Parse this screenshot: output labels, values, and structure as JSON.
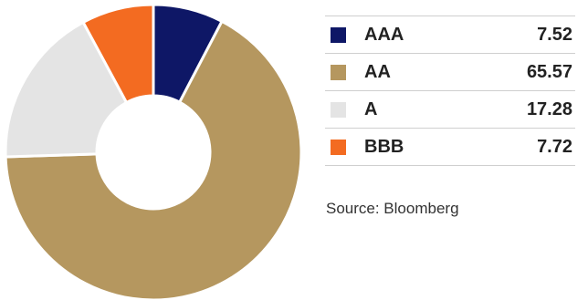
{
  "chart_data": {
    "type": "pie",
    "style": "donut",
    "categories": [
      "AAA",
      "AA",
      "A",
      "BBB"
    ],
    "values": [
      7.52,
      65.57,
      17.28,
      7.72
    ],
    "colors": [
      "#0e1766",
      "#b5975f",
      "#e4e4e4",
      "#f36b21"
    ],
    "legend_position": "right"
  },
  "legend": {
    "items": [
      {
        "label": "AAA",
        "value": "7.52",
        "color": "#0e1766"
      },
      {
        "label": "AA",
        "value": "65.57",
        "color": "#b5975f"
      },
      {
        "label": "A",
        "value": "17.28",
        "color": "#e4e4e4"
      },
      {
        "label": "BBB",
        "value": "7.72",
        "color": "#f36b21"
      }
    ]
  },
  "source": "Source: Bloomberg"
}
